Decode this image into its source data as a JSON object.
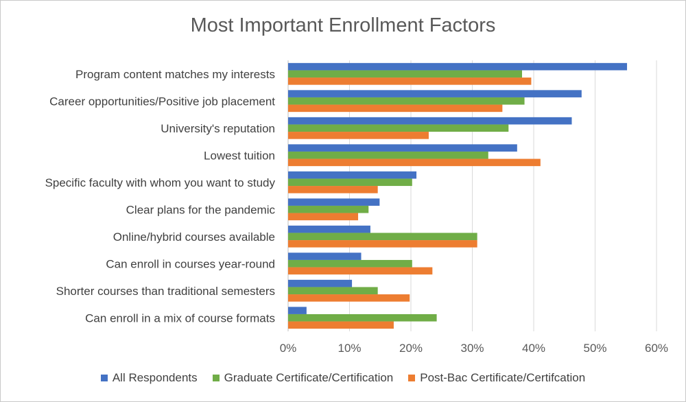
{
  "chart_data": {
    "type": "bar",
    "orientation": "horizontal",
    "title": "Most Important Enrollment Factors",
    "xlabel": "",
    "ylabel": "",
    "xlim": [
      0,
      60
    ],
    "xticks": [
      "0%",
      "10%",
      "20%",
      "30%",
      "40%",
      "50%",
      "60%"
    ],
    "grid": true,
    "legend_position": "bottom",
    "categories": [
      "Program content matches my interests",
      "Career opportunities/Positive job placement",
      "University's reputation",
      "Lowest tuition",
      "Specific faculty with whom you want to study",
      "Clear plans for the pandemic",
      "Online/hybrid courses available",
      "Can enroll in courses year-round",
      "Shorter courses than traditional semesters",
      "Can enroll in a mix of course formats"
    ],
    "series": [
      {
        "name": "All Respondents",
        "color": "#4472c4",
        "values": [
          55.2,
          47.8,
          46.2,
          37.3,
          20.9,
          14.9,
          13.4,
          11.9,
          10.4,
          3.0
        ]
      },
      {
        "name": "Graduate Certificate/Certification",
        "color": "#70ad47",
        "values": [
          38.1,
          38.5,
          35.9,
          32.6,
          20.2,
          13.1,
          30.8,
          20.2,
          14.6,
          24.2
        ]
      },
      {
        "name": "Post-Bac Certificate/Certifcation",
        "color": "#ed7d31",
        "values": [
          39.6,
          34.9,
          22.9,
          41.1,
          14.6,
          11.4,
          30.8,
          23.5,
          19.8,
          17.2
        ]
      }
    ]
  }
}
